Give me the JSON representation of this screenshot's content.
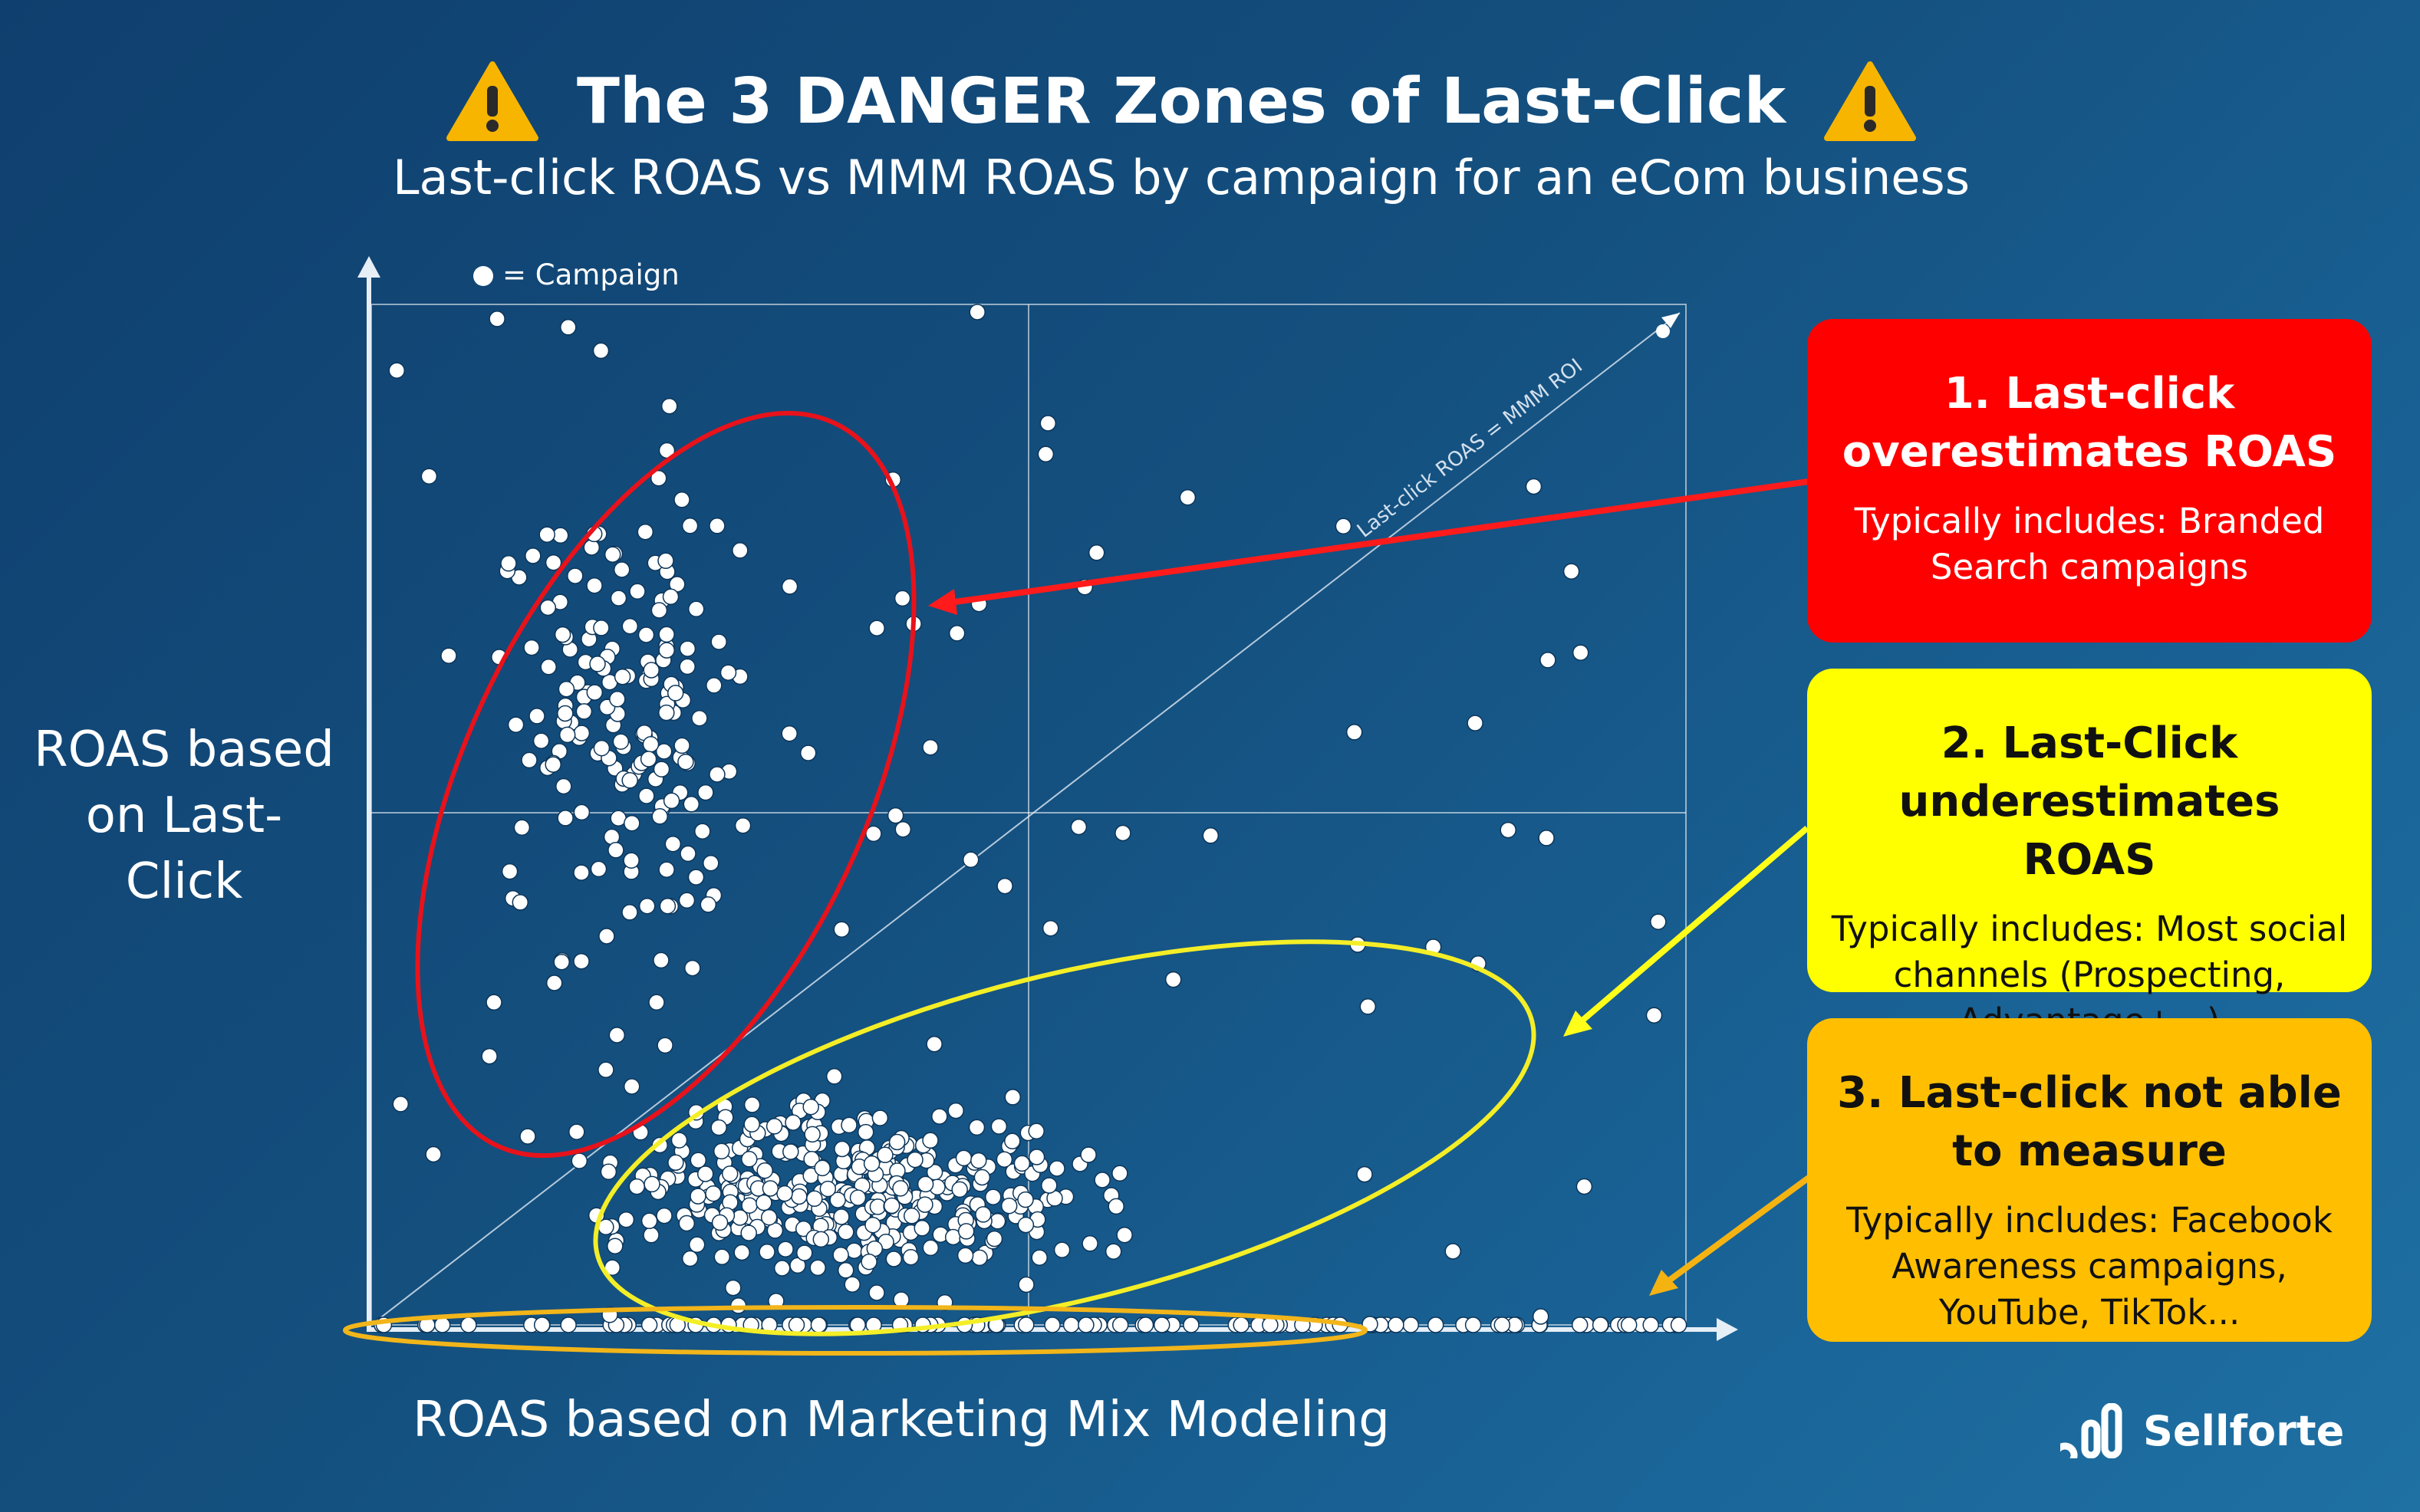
{
  "header": {
    "title": "The 3 DANGER Zones of Last-Click",
    "subtitle": "Last-click ROAS vs MMM ROAS by campaign for an eCom business",
    "warning_icon": "warning-triangle-icon"
  },
  "chart_data": {
    "type": "scatter",
    "title": "The 3 DANGER Zones of Last-Click",
    "subtitle": "Last-click ROAS vs MMM ROAS by campaign for an eCom business",
    "xlabel": "ROAS based on Marketing Mix Modeling",
    "ylabel": "ROAS based on Last-Click",
    "xlim": [
      0,
      100
    ],
    "ylim": [
      0,
      100
    ],
    "grid": true,
    "legend": {
      "marker": "white-dot",
      "label": "= Campaign",
      "placement": "top-left"
    },
    "diagonal_label": "Last-click ROAS = MMM ROI",
    "point_count": 720,
    "zones": [
      {
        "name": "overestimates",
        "outline_color": "#e8121b"
      },
      {
        "name": "underestimates",
        "outline_color": "#f4ee27"
      },
      {
        "name": "not-measured",
        "outline_color": "#f2b51a"
      }
    ]
  },
  "cards": [
    {
      "heading": "1. Last-click overestimates ROAS",
      "body": "Typically includes: Branded Search campaigns",
      "color": "#ff0000"
    },
    {
      "heading": "2. Last-Click underestimates ROAS",
      "body": "Typically includes: Most social channels (Prospecting, Advantage+...)",
      "color": "#ffff00"
    },
    {
      "heading": "3. Last-click not able to measure",
      "body": "Typically includes: Facebook Awareness campaigns, YouTube, TikTok...",
      "color": "#ffbf00"
    }
  ],
  "brand": {
    "name": "Sellforte",
    "icon": "sellforte-logo-icon"
  },
  "colors": {
    "background": "#14507f",
    "point": "#ffffff"
  }
}
